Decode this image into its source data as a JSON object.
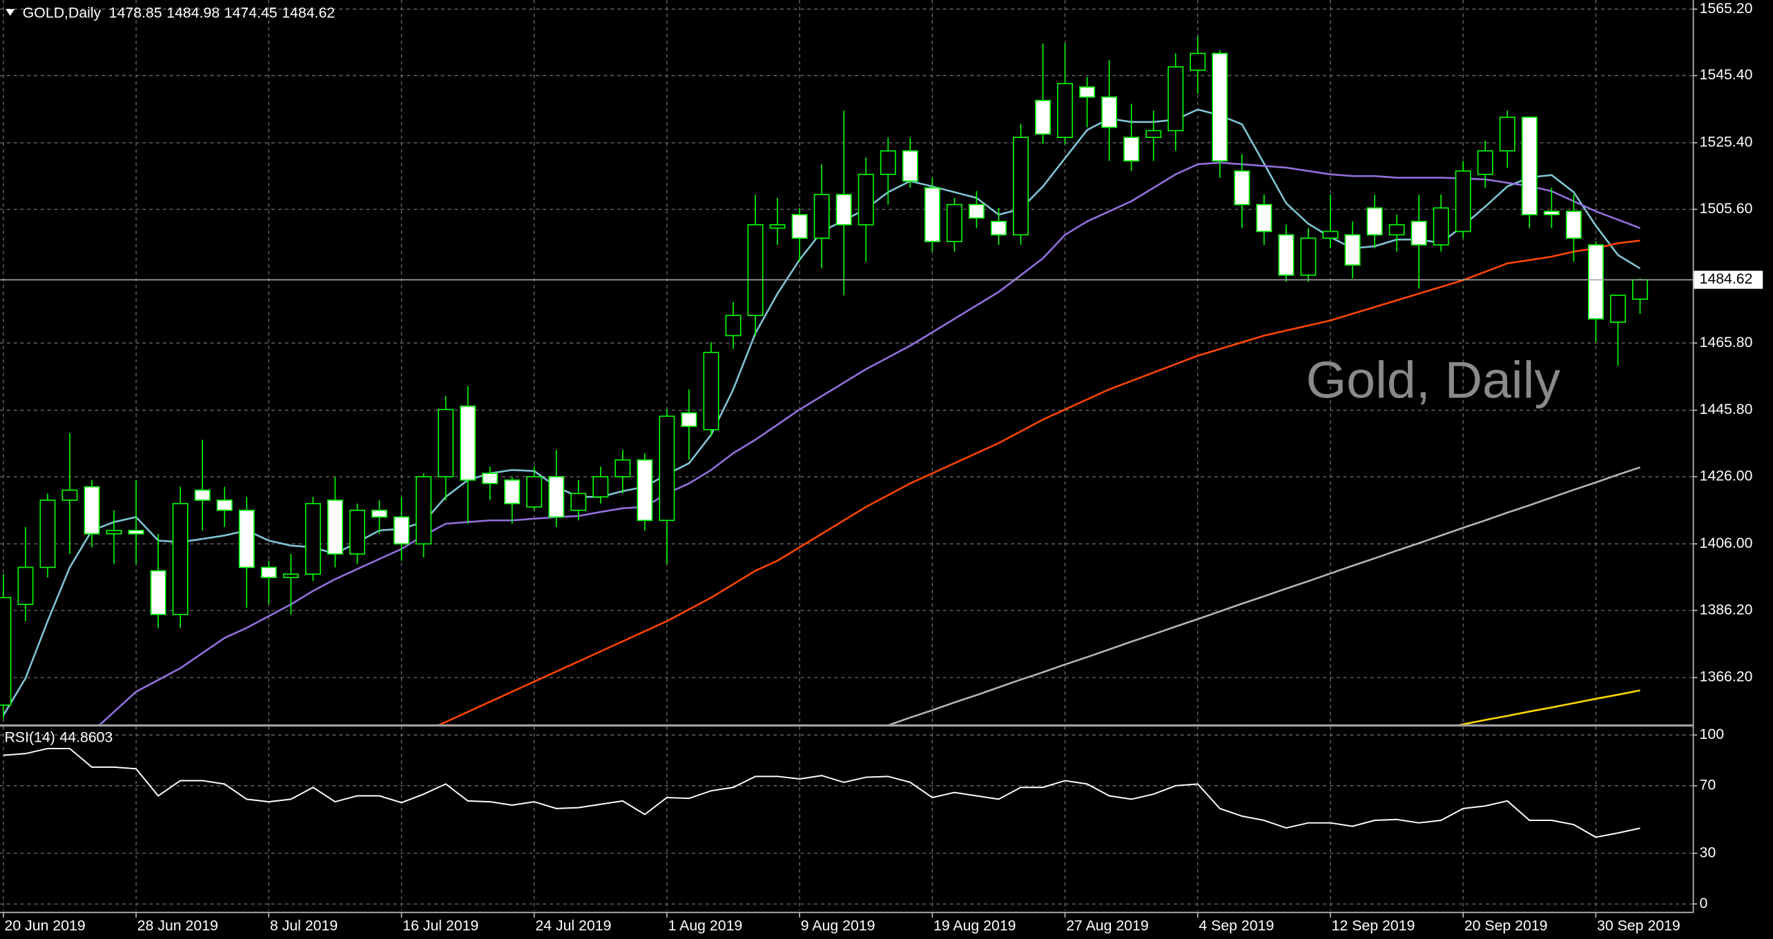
{
  "chart_data": [
    {
      "type": "candlestick",
      "title": "GOLD,Daily",
      "watermark": "Gold, Daily",
      "categories": [
        "20 Jun 2019",
        null,
        null,
        null,
        null,
        null,
        "28 Jun 2019",
        null,
        null,
        null,
        null,
        null,
        "8 Jul 2019",
        null,
        null,
        null,
        null,
        null,
        "16 Jul 2019",
        null,
        null,
        null,
        null,
        null,
        "24 Jul 2019",
        null,
        null,
        null,
        null,
        null,
        "1 Aug 2019",
        null,
        null,
        null,
        null,
        null,
        "9 Aug 2019",
        null,
        null,
        null,
        null,
        null,
        "19 Aug 2019",
        null,
        null,
        null,
        null,
        null,
        "27 Aug 2019",
        null,
        null,
        null,
        null,
        null,
        "4 Sep 2019",
        null,
        null,
        null,
        null,
        null,
        "12 Sep 2019",
        null,
        null,
        null,
        null,
        null,
        "20 Sep 2019",
        null,
        null,
        null,
        null,
        null,
        "30 Sep 2019",
        null,
        null
      ],
      "open": [
        1358,
        1388,
        1399,
        1419,
        1423,
        1409,
        1410,
        1398,
        1385,
        1422,
        1419,
        1416,
        1399,
        1396,
        1397,
        1419,
        1403,
        1416,
        1414,
        1406,
        1426,
        1447,
        1427,
        1425,
        1417,
        1426,
        1416,
        1420,
        1426,
        1431,
        1413,
        1445,
        1440,
        1468,
        1474,
        1500,
        1504,
        1497,
        1510,
        1501,
        1516,
        1523,
        1512,
        1496,
        1507,
        1502,
        1498,
        1538,
        1527,
        1542,
        1539,
        1527,
        1527,
        1529,
        1547,
        1552,
        1517,
        1507,
        1498,
        1486,
        1497,
        1498,
        1506,
        1498,
        1502,
        1495,
        1499,
        1516,
        1523,
        1533,
        1505,
        1505,
        1495,
        1472,
        1478.85
      ],
      "high": [
        1397,
        1411,
        1421,
        1439,
        1425,
        1416,
        1425,
        1409,
        1423,
        1437,
        1423,
        1420,
        1401,
        1403,
        1420,
        1426,
        1418,
        1419,
        1420,
        1427,
        1450,
        1453,
        1429,
        1426,
        1429,
        1434,
        1425,
        1429,
        1434,
        1433,
        1446,
        1452,
        1466,
        1478,
        1510,
        1509,
        1506,
        1519,
        1535,
        1521,
        1527,
        1527,
        1515,
        1509,
        1511,
        1506,
        1531,
        1555,
        1555,
        1545,
        1550,
        1537,
        1535,
        1552,
        1557,
        1553,
        1522,
        1510,
        1501,
        1500,
        1510,
        1502,
        1510,
        1504,
        1510,
        1510,
        1520,
        1526,
        1535,
        1533,
        1512,
        1510,
        1496,
        1480,
        1484.98
      ],
      "low": [
        1354,
        1383,
        1396,
        1403,
        1405,
        1400,
        1400,
        1381,
        1381,
        1410,
        1411,
        1387,
        1388,
        1385,
        1395,
        1399,
        1400,
        1409,
        1401,
        1402,
        1419,
        1412,
        1419,
        1412,
        1416,
        1411,
        1413,
        1418,
        1421,
        1410,
        1400,
        1431,
        1438,
        1464,
        1468,
        1495,
        1490,
        1488,
        1480,
        1490,
        1507,
        1512,
        1493,
        1493,
        1500,
        1495,
        1495,
        1525,
        1525,
        1530,
        1520,
        1517,
        1520,
        1523,
        1540,
        1515,
        1500,
        1495,
        1484,
        1484,
        1494,
        1485,
        1494,
        1493,
        1482,
        1493,
        1497,
        1512,
        1518,
        1500,
        1500,
        1490,
        1466,
        1459,
        1474.45
      ],
      "close": [
        1390,
        1399,
        1419,
        1422,
        1409,
        1410,
        1409,
        1385,
        1418,
        1419,
        1416,
        1399,
        1396,
        1397,
        1418,
        1403,
        1416,
        1414,
        1406,
        1426,
        1446,
        1425,
        1424,
        1418,
        1426,
        1414,
        1421,
        1426,
        1431,
        1413,
        1444,
        1441,
        1463,
        1474,
        1501,
        1501,
        1497,
        1510,
        1501,
        1516,
        1523,
        1514,
        1496,
        1507,
        1503,
        1498,
        1527,
        1528,
        1543,
        1539,
        1530,
        1520,
        1529,
        1548,
        1552,
        1520,
        1507,
        1499,
        1486,
        1497,
        1499,
        1489,
        1498,
        1501,
        1495,
        1506,
        1517,
        1523,
        1533,
        1504,
        1504,
        1497,
        1473,
        1480,
        1484.62
      ],
      "wick_color": "#00ff00",
      "up_fill": "#000000",
      "down_fill": "#ffffff",
      "lines": [
        {
          "color": "#80c4d4",
          "values": [
            1355,
            1366,
            1383,
            1399,
            1410,
            1412.5,
            1414,
            1407,
            1406.5,
            1407.5,
            1408.5,
            1410,
            1407,
            1405.5,
            1405,
            1403,
            1406.5,
            1410,
            1410.5,
            1412.5,
            1420,
            1425,
            1427,
            1428,
            1427.7,
            1423,
            1420,
            1420,
            1421.7,
            1423,
            1426.7,
            1430,
            1438.5,
            1452,
            1468.7,
            1480.5,
            1490.6,
            1499,
            1502.3,
            1505.7,
            1510.7,
            1514,
            1512.4,
            1510.7,
            1509,
            1504,
            1505.7,
            1512.4,
            1520.8,
            1529.2,
            1532.6,
            1531.6,
            1531.6,
            1532.3,
            1535.3,
            1533.6,
            1530.9,
            1519.2,
            1507.4,
            1501.3,
            1497.3,
            1494,
            1494.6,
            1496.6,
            1496.6,
            1495.6,
            1500.7,
            1506.4,
            1512.4,
            1515.1,
            1515.8,
            1510.7,
            1500.7,
            1492,
            1488
          ]
        },
        {
          "color": "#9370db",
          "values": [
            null,
            null,
            null,
            null,
            1350,
            1356,
            1362,
            1365.5,
            1369,
            1373.5,
            1378,
            1381,
            1384.5,
            1388,
            1392,
            1395.5,
            1398.5,
            1401.5,
            1404.5,
            1408.5,
            1412,
            1412.5,
            1413,
            1413,
            1413.5,
            1414,
            1414.3,
            1415.5,
            1416.6,
            1417,
            1421,
            1424,
            1428,
            1433,
            1437,
            1441.5,
            1446,
            1450,
            1454,
            1458,
            1461.5,
            1465,
            1469,
            1473,
            1477,
            1481,
            1486,
            1491,
            1498,
            1502,
            1505,
            1508,
            1512,
            1516,
            1519,
            1519.5,
            1519,
            1518.5,
            1518,
            1517,
            1516,
            1515.5,
            1515.5,
            1515,
            1515,
            1515,
            1514.8,
            1514.5,
            1513.5,
            1512.5,
            1511,
            1508,
            1505,
            1502.5,
            1500
          ]
        },
        {
          "color": "#ff4500",
          "values": [
            null,
            null,
            null,
            null,
            null,
            null,
            null,
            null,
            null,
            null,
            null,
            null,
            null,
            null,
            null,
            null,
            null,
            null,
            null,
            1350,
            1353,
            1356,
            1359,
            1362,
            1365,
            1368,
            1371,
            1374,
            1377,
            1380,
            1383,
            1386.5,
            1390,
            1394,
            1398,
            1401,
            1405,
            1409,
            1413,
            1417,
            1420.5,
            1424,
            1427,
            1430,
            1433,
            1436,
            1439.5,
            1443,
            1446,
            1449,
            1452,
            1454.5,
            1457,
            1459.5,
            1462,
            1464,
            1466,
            1468,
            1469.5,
            1471,
            1472.5,
            1474.5,
            1476.5,
            1478.5,
            1480.5,
            1482.5,
            1484.5,
            1487,
            1489.5,
            1490.5,
            1491.5,
            1493,
            1494,
            1495.5,
            1496.3
          ]
        },
        {
          "color": "#b4b4b4",
          "values": [
            null,
            null,
            null,
            null,
            null,
            null,
            null,
            null,
            null,
            null,
            null,
            null,
            null,
            null,
            null,
            null,
            null,
            null,
            null,
            null,
            null,
            null,
            null,
            null,
            null,
            null,
            null,
            null,
            null,
            null,
            null,
            null,
            null,
            null,
            null,
            null,
            null,
            null,
            null,
            1350,
            1352,
            1354.3,
            1356.5,
            1358.8,
            1361,
            1363.3,
            1365.6,
            1367.8,
            1370.1,
            1372.3,
            1374.6,
            1376.9,
            1379.1,
            1381.4,
            1383.6,
            1385.9,
            1388.2,
            1390.4,
            1392.7,
            1394.9,
            1397.2,
            1399.5,
            1401.7,
            1404,
            1406.2,
            1408.5,
            1410.8,
            1413,
            1415.3,
            1417.5,
            1419.8,
            1422.1,
            1424.3,
            1426.6,
            1428.8
          ]
        },
        {
          "color": "#ffd700",
          "values": [
            null,
            null,
            null,
            null,
            null,
            null,
            null,
            null,
            null,
            null,
            null,
            null,
            null,
            null,
            null,
            null,
            null,
            null,
            null,
            null,
            null,
            null,
            null,
            null,
            null,
            null,
            null,
            null,
            null,
            null,
            null,
            null,
            null,
            null,
            null,
            null,
            null,
            null,
            null,
            null,
            null,
            null,
            null,
            null,
            null,
            null,
            null,
            null,
            null,
            null,
            null,
            null,
            null,
            null,
            null,
            null,
            null,
            null,
            null,
            null,
            null,
            null,
            null,
            null,
            null,
            1351,
            1352.3,
            1353.6,
            1354.8,
            1356.1,
            1357.3,
            1358.6,
            1359.9,
            1361.1,
            1362.4
          ]
        }
      ],
      "ylim": [
        1352.3,
        1567.9
      ],
      "yticks": [
        {
          "value": 1565.2,
          "label": "1565.20"
        },
        {
          "value": 1545.4,
          "label": "1545.40"
        },
        {
          "value": 1525.4,
          "label": "1525.40"
        },
        {
          "value": 1505.6,
          "label": "1505.60"
        },
        {
          "value": 1465.8,
          "label": "1465.80"
        },
        {
          "value": 1445.8,
          "label": "1445.80"
        },
        {
          "value": 1426,
          "label": "1426.00"
        },
        {
          "value": 1406,
          "label": "1406.00"
        },
        {
          "value": 1386.2,
          "label": "1386.20"
        },
        {
          "value": 1366.2,
          "label": "1366.20"
        }
      ],
      "grid": true
    },
    {
      "type": "line",
      "name": "RSI(14)",
      "color": "#ffffff",
      "values": [
        88,
        89,
        92,
        92,
        81,
        81,
        80,
        64,
        73,
        73,
        71,
        62,
        60.5,
        62,
        69,
        60.5,
        64,
        64,
        60,
        65,
        71,
        61,
        60.5,
        58.5,
        60.5,
        56.5,
        57,
        59,
        61,
        53,
        63,
        62.5,
        67,
        69,
        75.5,
        75.5,
        74,
        76,
        72,
        75,
        75.5,
        72,
        63,
        66,
        64,
        62,
        69,
        69,
        73,
        71,
        64,
        62,
        65,
        70,
        71,
        56.5,
        52,
        49.5,
        45,
        48,
        48,
        46,
        49.5,
        50,
        48,
        49.5,
        56.5,
        58,
        61,
        49.5,
        49.5,
        47,
        39.5,
        42,
        44.8603
      ],
      "ylim": [
        -4,
        105
      ],
      "yticks": [
        0,
        30,
        70,
        100
      ],
      "grid": true
    }
  ]
}
